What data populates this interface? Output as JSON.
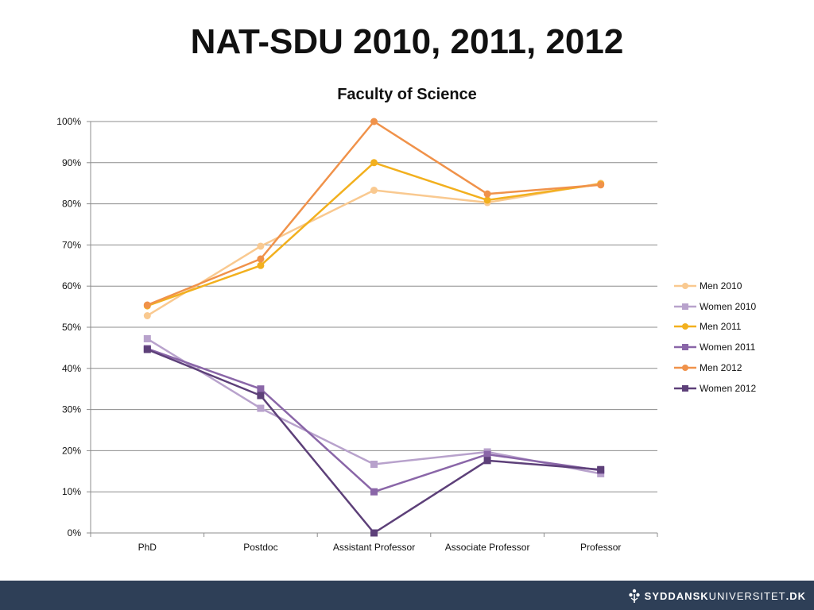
{
  "slide": {
    "title": "NAT-SDU 2010, 2011, 2012"
  },
  "footer": {
    "logo_part1": "SYDDANSK",
    "logo_part2": "UNIVERSITET",
    "logo_part3": ".DK",
    "background": "#2e3f57"
  },
  "chart_data": {
    "type": "line",
    "title": "Faculty of Science",
    "categories": [
      "PhD",
      "Postdoc",
      "Assistant Professor",
      "Associate Professor",
      "Professor"
    ],
    "y_tick_labels": [
      "0%",
      "10%",
      "20%",
      "30%",
      "40%",
      "50%",
      "60%",
      "70%",
      "80%",
      "90%",
      "100%"
    ],
    "ylim": [
      0,
      100
    ],
    "y_step": 10,
    "grid": true,
    "legend_position": "right",
    "series": [
      {
        "name": "Men 2010",
        "values": [
          52.8,
          69.7,
          83.3,
          80.3,
          85.0
        ],
        "color": "#f9c990",
        "marker": "circle"
      },
      {
        "name": "Women 2010",
        "values": [
          47.2,
          30.3,
          16.7,
          19.7,
          14.4
        ],
        "color": "#b8a2cc",
        "marker": "square"
      },
      {
        "name": "Men 2011",
        "values": [
          55.2,
          65.0,
          90.0,
          80.9,
          84.8
        ],
        "color": "#f2b01e",
        "marker": "circle"
      },
      {
        "name": "Women 2011",
        "values": [
          44.8,
          35.0,
          10.0,
          19.1,
          15.2
        ],
        "color": "#8a66a8",
        "marker": "square"
      },
      {
        "name": "Men 2012",
        "values": [
          55.4,
          66.6,
          100.0,
          82.4,
          84.6
        ],
        "color": "#f0924a",
        "marker": "circle"
      },
      {
        "name": "Women 2012",
        "values": [
          44.6,
          33.4,
          0.0,
          17.6,
          15.4
        ],
        "color": "#5d4079",
        "marker": "square"
      }
    ]
  }
}
